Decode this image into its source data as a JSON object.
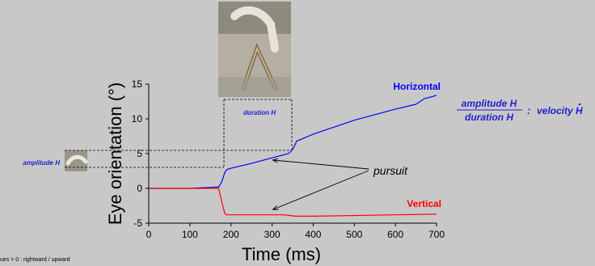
{
  "chart_data": {
    "type": "line",
    "xlabel": "Time (ms)",
    "ylabel": "Eye orientation (°)",
    "xlim": [
      0,
      700
    ],
    "ylim": [
      -5,
      15
    ],
    "xticks": [
      0,
      100,
      200,
      300,
      400,
      500,
      600,
      700
    ],
    "yticks": [
      -5,
      0,
      5,
      10,
      15
    ],
    "grid": false,
    "series": [
      {
        "name": "Horizontal",
        "color": "#0000ff",
        "x": [
          0,
          100,
          170,
          178,
          185,
          190,
          200,
          250,
          300,
          340,
          350,
          360,
          400,
          450,
          500,
          550,
          600,
          650,
          670,
          690,
          700
        ],
        "y": [
          0,
          0,
          0.2,
          1,
          2.3,
          2.7,
          2.9,
          3.6,
          4.4,
          5.0,
          5.6,
          6.8,
          7.8,
          8.8,
          9.8,
          10.6,
          11.4,
          12.1,
          12.9,
          13.2,
          13.4
        ]
      },
      {
        "name": "Vertical",
        "color": "#ff0000",
        "x": [
          0,
          100,
          170,
          180,
          185,
          190,
          200,
          250,
          300,
          330,
          350,
          360,
          400,
          500,
          600,
          700
        ],
        "y": [
          0,
          0,
          0,
          -2.5,
          -3.6,
          -3.8,
          -3.8,
          -3.8,
          -3.8,
          -3.8,
          -3.95,
          -4.0,
          -4.0,
          -3.9,
          -3.8,
          -3.7
        ]
      }
    ],
    "annotations": {
      "pursuit": "pursuit",
      "duration": "duration H",
      "amplitude": "amplitude H",
      "fraction_numerator": "amplitude H",
      "fraction_denominator": "duration H",
      "ratio_separator": ":",
      "ratio_rhs": "velocity H",
      "footnote": "ues > 0 : rightward / upward"
    }
  }
}
